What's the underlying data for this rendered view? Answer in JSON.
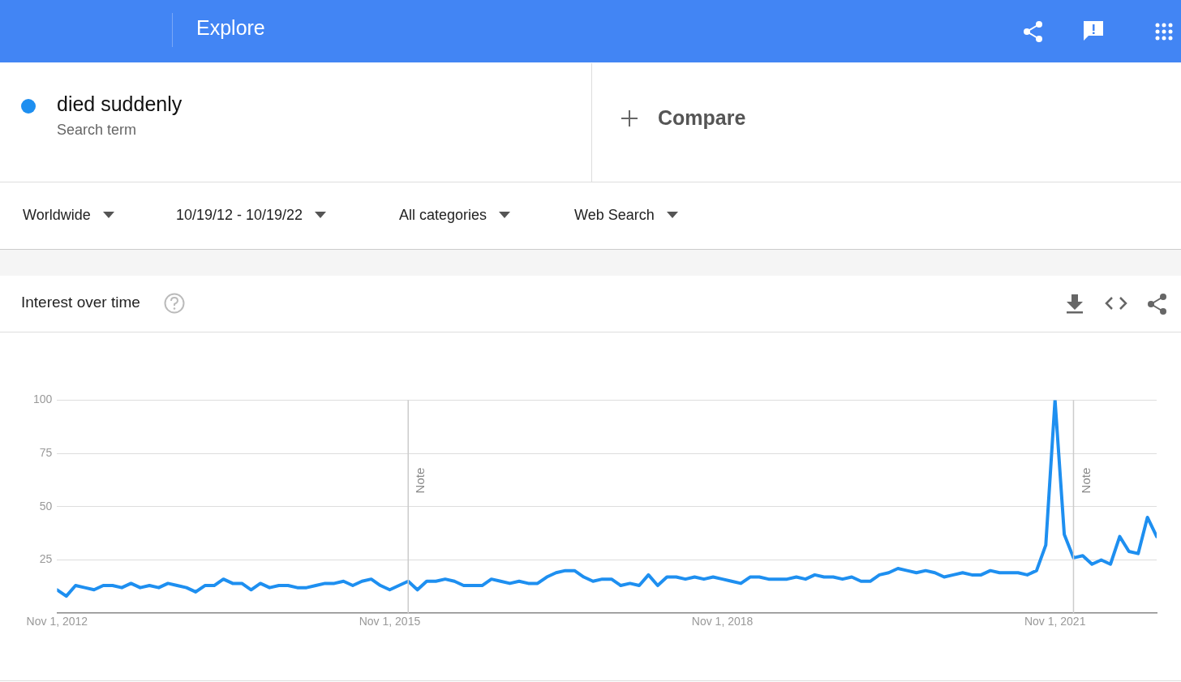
{
  "chart_data": {
    "type": "line",
    "title": "Interest over time",
    "x": [
      "2012-11",
      "2012-12",
      "2013-01",
      "2013-02",
      "2013-03",
      "2013-04",
      "2013-05",
      "2013-06",
      "2013-07",
      "2013-08",
      "2013-09",
      "2013-10",
      "2013-11",
      "2013-12",
      "2014-01",
      "2014-02",
      "2014-03",
      "2014-04",
      "2014-05",
      "2014-06",
      "2014-07",
      "2014-08",
      "2014-09",
      "2014-10",
      "2014-11",
      "2014-12",
      "2015-01",
      "2015-02",
      "2015-03",
      "2015-04",
      "2015-05",
      "2015-06",
      "2015-07",
      "2015-08",
      "2015-09",
      "2015-10",
      "2015-11",
      "2015-12",
      "2016-01",
      "2016-02",
      "2016-03",
      "2016-04",
      "2016-05",
      "2016-06",
      "2016-07",
      "2016-08",
      "2016-09",
      "2016-10",
      "2016-11",
      "2016-12",
      "2017-01",
      "2017-02",
      "2017-03",
      "2017-04",
      "2017-05",
      "2017-06",
      "2017-07",
      "2017-08",
      "2017-09",
      "2017-10",
      "2017-11",
      "2017-12",
      "2018-01",
      "2018-02",
      "2018-03",
      "2018-04",
      "2018-05",
      "2018-06",
      "2018-07",
      "2018-08",
      "2018-09",
      "2018-10",
      "2018-11",
      "2018-12",
      "2019-01",
      "2019-02",
      "2019-03",
      "2019-04",
      "2019-05",
      "2019-06",
      "2019-07",
      "2019-08",
      "2019-09",
      "2019-10",
      "2019-11",
      "2019-12",
      "2020-01",
      "2020-02",
      "2020-03",
      "2020-04",
      "2020-05",
      "2020-06",
      "2020-07",
      "2020-08",
      "2020-09",
      "2020-10",
      "2020-11",
      "2020-12",
      "2021-01",
      "2021-02",
      "2021-03",
      "2021-04",
      "2021-05",
      "2021-06",
      "2021-07",
      "2021-08",
      "2021-09",
      "2021-10",
      "2021-11",
      "2021-12",
      "2022-01",
      "2022-02",
      "2022-03",
      "2022-04",
      "2022-05",
      "2022-06",
      "2022-07",
      "2022-08",
      "2022-09",
      "2022-10"
    ],
    "series": [
      {
        "name": "died suddenly",
        "color": "#1e8ff0",
        "values": [
          11,
          8,
          13,
          12,
          11,
          13,
          13,
          12,
          14,
          12,
          13,
          12,
          14,
          13,
          12,
          10,
          13,
          13,
          16,
          14,
          14,
          11,
          14,
          12,
          13,
          13,
          12,
          12,
          13,
          14,
          14,
          15,
          13,
          15,
          16,
          13,
          11,
          13,
          15,
          11,
          15,
          15,
          16,
          15,
          13,
          13,
          13,
          16,
          15,
          14,
          15,
          14,
          14,
          17,
          19,
          20,
          20,
          17,
          15,
          16,
          16,
          13,
          14,
          13,
          18,
          13,
          17,
          17,
          16,
          17,
          16,
          17,
          16,
          15,
          14,
          17,
          17,
          16,
          16,
          16,
          17,
          16,
          18,
          17,
          17,
          16,
          17,
          15,
          15,
          18,
          19,
          21,
          20,
          19,
          20,
          19,
          17,
          18,
          19,
          18,
          18,
          20,
          19,
          19,
          19,
          18,
          20,
          32,
          100,
          37,
          26,
          27,
          23,
          25,
          23,
          36,
          29,
          28,
          45,
          36
        ]
      }
    ],
    "xlim": [
      "2012-11",
      "2022-10"
    ],
    "xticks": [
      {
        "value": "2012-11",
        "label": "Nov 1, 2012"
      },
      {
        "value": "2015-11",
        "label": "Nov 1, 2015"
      },
      {
        "value": "2018-11",
        "label": "Nov 1, 2018"
      },
      {
        "value": "2021-11",
        "label": "Nov 1, 2021"
      }
    ],
    "ylim": [
      0,
      100
    ],
    "yticks": [
      25,
      50,
      75,
      100
    ],
    "grid": "y",
    "legend": "top left",
    "marker": "none",
    "line_style": "solid",
    "ref_lines": [
      {
        "axis": "x",
        "value": "2016-01",
        "label": "Note",
        "color": "#cccccc"
      },
      {
        "axis": "x",
        "value": "2022-01",
        "label": "Note",
        "color": "#cccccc"
      }
    ],
    "annotations": [
      "Explore",
      "Search term",
      "Compare",
      "Worldwide",
      "10/19/12 - 10/19/22",
      "All categories",
      "Web Search"
    ]
  }
}
